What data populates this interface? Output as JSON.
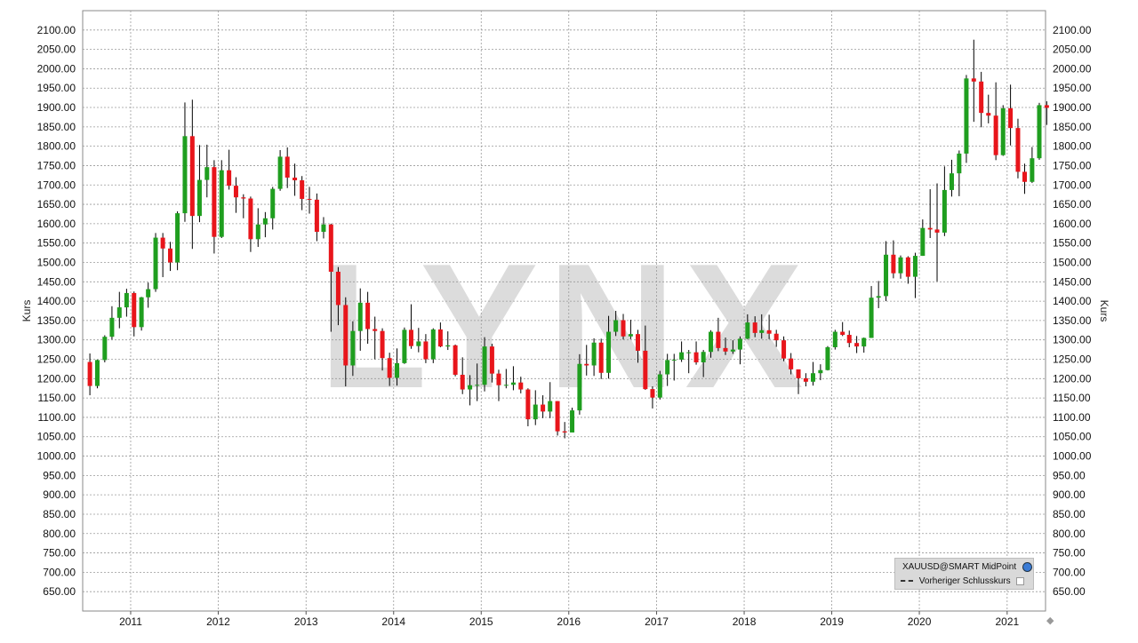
{
  "watermark": "LYNX",
  "legend": {
    "series_label": "XAUUSD@SMART MidPoint",
    "series_icon": "globe-icon",
    "prev_close_label": "Vorheriger Schlusskurs",
    "prev_close_icon": "checkbox-icon"
  },
  "colors": {
    "up": "#1f9e1f",
    "down": "#e8151b",
    "grid": "#9a9a9a",
    "watermark": "#dcdcdc"
  },
  "chart_data": {
    "type": "candlestick",
    "symbol": "XAUUSD@SMART MidPoint",
    "period": "monthly",
    "ylabel": "Kurs",
    "xlabel": "",
    "ylim": [
      600,
      2150
    ],
    "xlim": [
      "2010-06-15",
      "2021-06-10"
    ],
    "grid": true,
    "legend_position": "bottom-right",
    "y_ticks": [
      650,
      700,
      750,
      800,
      850,
      900,
      950,
      1000,
      1050,
      1100,
      1150,
      1200,
      1250,
      1300,
      1350,
      1400,
      1450,
      1500,
      1550,
      1600,
      1650,
      1700,
      1750,
      1800,
      1850,
      1900,
      1950,
      2000,
      2050,
      2100
    ],
    "x_ticks": [
      "2011",
      "2012",
      "2013",
      "2014",
      "2015",
      "2016",
      "2017",
      "2018",
      "2019",
      "2020",
      "2021"
    ],
    "candles": [
      {
        "date": "2010-07",
        "open": 1243,
        "high": 1265,
        "low": 1157,
        "close": 1181
      },
      {
        "date": "2010-08",
        "open": 1181,
        "high": 1249,
        "low": 1175,
        "close": 1248
      },
      {
        "date": "2010-09",
        "open": 1248,
        "high": 1312,
        "low": 1242,
        "close": 1308
      },
      {
        "date": "2010-10",
        "open": 1308,
        "high": 1387,
        "low": 1301,
        "close": 1357
      },
      {
        "date": "2010-11",
        "open": 1357,
        "high": 1424,
        "low": 1330,
        "close": 1384
      },
      {
        "date": "2010-12",
        "open": 1384,
        "high": 1432,
        "low": 1360,
        "close": 1421
      },
      {
        "date": "2011-01",
        "open": 1421,
        "high": 1425,
        "low": 1309,
        "close": 1333
      },
      {
        "date": "2011-02",
        "open": 1333,
        "high": 1411,
        "low": 1324,
        "close": 1410
      },
      {
        "date": "2011-03",
        "open": 1410,
        "high": 1448,
        "low": 1383,
        "close": 1431
      },
      {
        "date": "2011-04",
        "open": 1431,
        "high": 1576,
        "low": 1424,
        "close": 1564
      },
      {
        "date": "2011-05",
        "open": 1564,
        "high": 1576,
        "low": 1462,
        "close": 1536
      },
      {
        "date": "2011-06",
        "open": 1536,
        "high": 1553,
        "low": 1478,
        "close": 1500
      },
      {
        "date": "2011-07",
        "open": 1500,
        "high": 1632,
        "low": 1480,
        "close": 1627
      },
      {
        "date": "2011-08",
        "open": 1627,
        "high": 1913,
        "low": 1605,
        "close": 1826
      },
      {
        "date": "2011-09",
        "open": 1826,
        "high": 1920,
        "low": 1535,
        "close": 1620
      },
      {
        "date": "2011-10",
        "open": 1620,
        "high": 1803,
        "low": 1604,
        "close": 1713
      },
      {
        "date": "2011-11",
        "open": 1713,
        "high": 1804,
        "low": 1668,
        "close": 1746
      },
      {
        "date": "2011-12",
        "open": 1746,
        "high": 1764,
        "low": 1523,
        "close": 1566
      },
      {
        "date": "2012-01",
        "open": 1566,
        "high": 1764,
        "low": 1563,
        "close": 1738
      },
      {
        "date": "2012-02",
        "open": 1738,
        "high": 1791,
        "low": 1688,
        "close": 1698
      },
      {
        "date": "2012-03",
        "open": 1698,
        "high": 1720,
        "low": 1628,
        "close": 1668
      },
      {
        "date": "2012-04",
        "open": 1668,
        "high": 1676,
        "low": 1614,
        "close": 1665
      },
      {
        "date": "2012-05",
        "open": 1665,
        "high": 1670,
        "low": 1527,
        "close": 1560
      },
      {
        "date": "2012-06",
        "open": 1560,
        "high": 1640,
        "low": 1540,
        "close": 1598
      },
      {
        "date": "2012-07",
        "open": 1598,
        "high": 1630,
        "low": 1565,
        "close": 1614
      },
      {
        "date": "2012-08",
        "open": 1614,
        "high": 1695,
        "low": 1585,
        "close": 1690
      },
      {
        "date": "2012-09",
        "open": 1690,
        "high": 1790,
        "low": 1685,
        "close": 1773
      },
      {
        "date": "2012-10",
        "open": 1773,
        "high": 1797,
        "low": 1692,
        "close": 1719
      },
      {
        "date": "2012-11",
        "open": 1719,
        "high": 1755,
        "low": 1672,
        "close": 1712
      },
      {
        "date": "2012-12",
        "open": 1712,
        "high": 1723,
        "low": 1635,
        "close": 1664
      },
      {
        "date": "2013-01",
        "open": 1664,
        "high": 1695,
        "low": 1626,
        "close": 1662
      },
      {
        "date": "2013-02",
        "open": 1662,
        "high": 1678,
        "low": 1555,
        "close": 1579
      },
      {
        "date": "2013-03",
        "open": 1579,
        "high": 1617,
        "low": 1562,
        "close": 1598
      },
      {
        "date": "2013-04",
        "open": 1598,
        "high": 1600,
        "low": 1321,
        "close": 1476
      },
      {
        "date": "2013-05",
        "open": 1476,
        "high": 1488,
        "low": 1338,
        "close": 1390
      },
      {
        "date": "2013-06",
        "open": 1390,
        "high": 1410,
        "low": 1180,
        "close": 1234
      },
      {
        "date": "2013-07",
        "open": 1234,
        "high": 1348,
        "low": 1207,
        "close": 1323
      },
      {
        "date": "2013-08",
        "open": 1323,
        "high": 1433,
        "low": 1272,
        "close": 1396
      },
      {
        "date": "2013-09",
        "open": 1396,
        "high": 1424,
        "low": 1290,
        "close": 1328
      },
      {
        "date": "2013-10",
        "open": 1328,
        "high": 1360,
        "low": 1250,
        "close": 1323
      },
      {
        "date": "2013-11",
        "open": 1323,
        "high": 1330,
        "low": 1221,
        "close": 1253
      },
      {
        "date": "2013-12",
        "open": 1253,
        "high": 1267,
        "low": 1181,
        "close": 1202
      },
      {
        "date": "2014-01",
        "open": 1202,
        "high": 1278,
        "low": 1182,
        "close": 1240
      },
      {
        "date": "2014-02",
        "open": 1240,
        "high": 1332,
        "low": 1238,
        "close": 1326
      },
      {
        "date": "2014-03",
        "open": 1326,
        "high": 1392,
        "low": 1277,
        "close": 1284
      },
      {
        "date": "2014-04",
        "open": 1284,
        "high": 1331,
        "low": 1268,
        "close": 1296
      },
      {
        "date": "2014-05",
        "open": 1296,
        "high": 1315,
        "low": 1240,
        "close": 1250
      },
      {
        "date": "2014-06",
        "open": 1250,
        "high": 1330,
        "low": 1240,
        "close": 1327
      },
      {
        "date": "2014-07",
        "open": 1327,
        "high": 1345,
        "low": 1281,
        "close": 1283
      },
      {
        "date": "2014-08",
        "open": 1283,
        "high": 1322,
        "low": 1274,
        "close": 1286
      },
      {
        "date": "2014-09",
        "open": 1286,
        "high": 1288,
        "low": 1206,
        "close": 1210
      },
      {
        "date": "2014-10",
        "open": 1210,
        "high": 1255,
        "low": 1160,
        "close": 1172
      },
      {
        "date": "2014-11",
        "open": 1172,
        "high": 1209,
        "low": 1131,
        "close": 1183
      },
      {
        "date": "2014-12",
        "open": 1183,
        "high": 1239,
        "low": 1142,
        "close": 1184
      },
      {
        "date": "2015-01",
        "open": 1184,
        "high": 1307,
        "low": 1167,
        "close": 1283
      },
      {
        "date": "2015-02",
        "open": 1283,
        "high": 1290,
        "low": 1190,
        "close": 1213
      },
      {
        "date": "2015-03",
        "open": 1213,
        "high": 1223,
        "low": 1142,
        "close": 1183
      },
      {
        "date": "2015-04",
        "open": 1183,
        "high": 1225,
        "low": 1175,
        "close": 1184
      },
      {
        "date": "2015-05",
        "open": 1184,
        "high": 1232,
        "low": 1170,
        "close": 1190
      },
      {
        "date": "2015-06",
        "open": 1190,
        "high": 1205,
        "low": 1162,
        "close": 1172
      },
      {
        "date": "2015-07",
        "open": 1172,
        "high": 1175,
        "low": 1077,
        "close": 1095
      },
      {
        "date": "2015-08",
        "open": 1095,
        "high": 1170,
        "low": 1080,
        "close": 1133
      },
      {
        "date": "2015-09",
        "open": 1133,
        "high": 1157,
        "low": 1098,
        "close": 1115
      },
      {
        "date": "2015-10",
        "open": 1115,
        "high": 1191,
        "low": 1098,
        "close": 1142
      },
      {
        "date": "2015-11",
        "open": 1142,
        "high": 1142,
        "low": 1053,
        "close": 1064
      },
      {
        "date": "2015-12",
        "open": 1064,
        "high": 1088,
        "low": 1046,
        "close": 1061
      },
      {
        "date": "2016-01",
        "open": 1061,
        "high": 1125,
        "low": 1062,
        "close": 1118
      },
      {
        "date": "2016-02",
        "open": 1118,
        "high": 1263,
        "low": 1107,
        "close": 1238
      },
      {
        "date": "2016-03",
        "open": 1238,
        "high": 1287,
        "low": 1208,
        "close": 1234
      },
      {
        "date": "2016-04",
        "open": 1234,
        "high": 1304,
        "low": 1207,
        "close": 1293
      },
      {
        "date": "2016-05",
        "open": 1293,
        "high": 1303,
        "low": 1199,
        "close": 1215
      },
      {
        "date": "2016-06",
        "open": 1215,
        "high": 1362,
        "low": 1200,
        "close": 1321
      },
      {
        "date": "2016-07",
        "open": 1321,
        "high": 1375,
        "low": 1310,
        "close": 1351
      },
      {
        "date": "2016-08",
        "open": 1351,
        "high": 1367,
        "low": 1301,
        "close": 1309
      },
      {
        "date": "2016-09",
        "open": 1309,
        "high": 1352,
        "low": 1302,
        "close": 1315
      },
      {
        "date": "2016-10",
        "open": 1315,
        "high": 1326,
        "low": 1241,
        "close": 1272
      },
      {
        "date": "2016-11",
        "open": 1272,
        "high": 1337,
        "low": 1171,
        "close": 1173
      },
      {
        "date": "2016-12",
        "open": 1173,
        "high": 1180,
        "low": 1123,
        "close": 1151
      },
      {
        "date": "2017-01",
        "open": 1151,
        "high": 1220,
        "low": 1146,
        "close": 1211
      },
      {
        "date": "2017-02",
        "open": 1211,
        "high": 1264,
        "low": 1181,
        "close": 1248
      },
      {
        "date": "2017-03",
        "open": 1248,
        "high": 1264,
        "low": 1195,
        "close": 1249
      },
      {
        "date": "2017-04",
        "open": 1249,
        "high": 1296,
        "low": 1243,
        "close": 1268
      },
      {
        "date": "2017-05",
        "open": 1268,
        "high": 1274,
        "low": 1214,
        "close": 1268
      },
      {
        "date": "2017-06",
        "open": 1268,
        "high": 1296,
        "low": 1236,
        "close": 1242
      },
      {
        "date": "2017-07",
        "open": 1242,
        "high": 1274,
        "low": 1204,
        "close": 1269
      },
      {
        "date": "2017-08",
        "open": 1269,
        "high": 1325,
        "low": 1254,
        "close": 1321
      },
      {
        "date": "2017-09",
        "open": 1321,
        "high": 1357,
        "low": 1271,
        "close": 1279
      },
      {
        "date": "2017-10",
        "open": 1279,
        "high": 1306,
        "low": 1261,
        "close": 1270
      },
      {
        "date": "2017-11",
        "open": 1270,
        "high": 1299,
        "low": 1264,
        "close": 1275
      },
      {
        "date": "2017-12",
        "open": 1275,
        "high": 1309,
        "low": 1237,
        "close": 1303
      },
      {
        "date": "2018-01",
        "open": 1303,
        "high": 1366,
        "low": 1302,
        "close": 1345
      },
      {
        "date": "2018-02",
        "open": 1345,
        "high": 1361,
        "low": 1307,
        "close": 1318
      },
      {
        "date": "2018-03",
        "open": 1318,
        "high": 1366,
        "low": 1303,
        "close": 1325
      },
      {
        "date": "2018-04",
        "open": 1325,
        "high": 1365,
        "low": 1302,
        "close": 1316
      },
      {
        "date": "2018-05",
        "open": 1316,
        "high": 1326,
        "low": 1282,
        "close": 1299
      },
      {
        "date": "2018-06",
        "open": 1299,
        "high": 1309,
        "low": 1245,
        "close": 1252
      },
      {
        "date": "2018-07",
        "open": 1252,
        "high": 1266,
        "low": 1211,
        "close": 1224
      },
      {
        "date": "2018-08",
        "open": 1224,
        "high": 1220,
        "low": 1160,
        "close": 1201
      },
      {
        "date": "2018-09",
        "open": 1201,
        "high": 1214,
        "low": 1180,
        "close": 1192
      },
      {
        "date": "2018-10",
        "open": 1192,
        "high": 1243,
        "low": 1182,
        "close": 1214
      },
      {
        "date": "2018-11",
        "open": 1214,
        "high": 1237,
        "low": 1196,
        "close": 1222
      },
      {
        "date": "2018-12",
        "open": 1222,
        "high": 1284,
        "low": 1221,
        "close": 1281
      },
      {
        "date": "2019-01",
        "open": 1281,
        "high": 1326,
        "low": 1275,
        "close": 1321
      },
      {
        "date": "2019-02",
        "open": 1321,
        "high": 1346,
        "low": 1310,
        "close": 1313
      },
      {
        "date": "2019-03",
        "open": 1313,
        "high": 1324,
        "low": 1281,
        "close": 1292
      },
      {
        "date": "2019-04",
        "open": 1292,
        "high": 1310,
        "low": 1266,
        "close": 1283
      },
      {
        "date": "2019-05",
        "open": 1283,
        "high": 1306,
        "low": 1267,
        "close": 1305
      },
      {
        "date": "2019-06",
        "open": 1305,
        "high": 1439,
        "low": 1306,
        "close": 1409
      },
      {
        "date": "2019-07",
        "open": 1409,
        "high": 1452,
        "low": 1382,
        "close": 1413
      },
      {
        "date": "2019-08",
        "open": 1413,
        "high": 1555,
        "low": 1400,
        "close": 1520
      },
      {
        "date": "2019-09",
        "open": 1520,
        "high": 1557,
        "low": 1459,
        "close": 1472
      },
      {
        "date": "2019-10",
        "open": 1472,
        "high": 1518,
        "low": 1458,
        "close": 1513
      },
      {
        "date": "2019-11",
        "open": 1513,
        "high": 1516,
        "low": 1445,
        "close": 1463
      },
      {
        "date": "2019-12",
        "open": 1463,
        "high": 1525,
        "low": 1408,
        "close": 1517
      },
      {
        "date": "2020-01",
        "open": 1517,
        "high": 1611,
        "low": 1517,
        "close": 1589
      },
      {
        "date": "2020-02",
        "open": 1589,
        "high": 1689,
        "low": 1563,
        "close": 1585
      },
      {
        "date": "2020-03",
        "open": 1585,
        "high": 1704,
        "low": 1451,
        "close": 1577
      },
      {
        "date": "2020-04",
        "open": 1577,
        "high": 1748,
        "low": 1568,
        "close": 1687
      },
      {
        "date": "2020-05",
        "open": 1687,
        "high": 1765,
        "low": 1670,
        "close": 1730
      },
      {
        "date": "2020-06",
        "open": 1730,
        "high": 1789,
        "low": 1671,
        "close": 1781
      },
      {
        "date": "2020-07",
        "open": 1781,
        "high": 1984,
        "low": 1757,
        "close": 1975
      },
      {
        "date": "2020-08",
        "open": 1975,
        "high": 2075,
        "low": 1863,
        "close": 1967
      },
      {
        "date": "2020-09",
        "open": 1967,
        "high": 1992,
        "low": 1849,
        "close": 1886
      },
      {
        "date": "2020-10",
        "open": 1886,
        "high": 1933,
        "low": 1859,
        "close": 1879
      },
      {
        "date": "2020-11",
        "open": 1879,
        "high": 1965,
        "low": 1764,
        "close": 1777
      },
      {
        "date": "2020-12",
        "open": 1777,
        "high": 1906,
        "low": 1775,
        "close": 1898
      },
      {
        "date": "2021-01",
        "open": 1898,
        "high": 1959,
        "low": 1802,
        "close": 1847
      },
      {
        "date": "2021-02",
        "open": 1847,
        "high": 1871,
        "low": 1717,
        "close": 1734
      },
      {
        "date": "2021-03",
        "open": 1734,
        "high": 1755,
        "low": 1677,
        "close": 1708
      },
      {
        "date": "2021-04",
        "open": 1708,
        "high": 1798,
        "low": 1705,
        "close": 1769
      },
      {
        "date": "2021-05",
        "open": 1769,
        "high": 1912,
        "low": 1765,
        "close": 1906
      },
      {
        "date": "2021-06",
        "open": 1906,
        "high": 1916,
        "low": 1855,
        "close": 1899
      }
    ]
  }
}
